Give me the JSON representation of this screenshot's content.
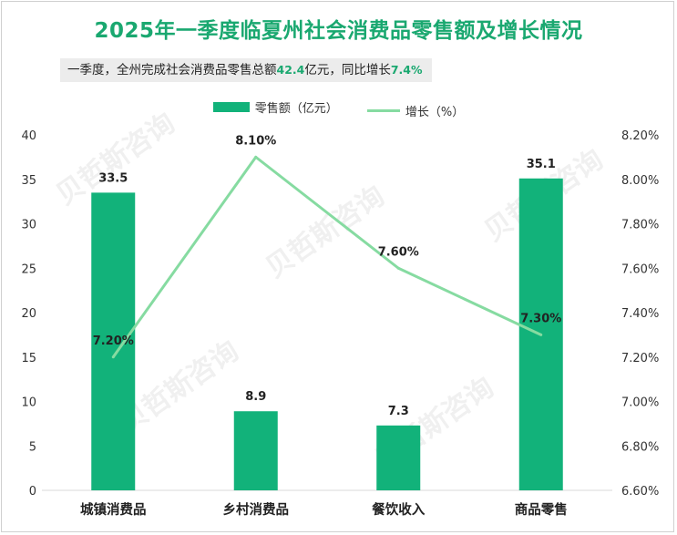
{
  "title": "2025年一季度临夏州社会消费品零售额及增长情况",
  "subtitle": {
    "prefix": "一季度，全州完成社会消费品零售总额",
    "total": "42.4",
    "mid": "亿元，同比增长",
    "growth": "7.4%"
  },
  "watermark": "贝哲斯咨询",
  "chart_data": {
    "type": "bar",
    "categories": [
      "城镇消费品",
      "乡村消费品",
      "餐饮收入",
      "商品零售"
    ],
    "series": [
      {
        "name": "零售额（亿元）",
        "kind": "bar",
        "axis": "left",
        "color": "#12b27a",
        "values": [
          33.5,
          8.9,
          7.3,
          35.1
        ],
        "labels": [
          "33.5",
          "8.9",
          "7.3",
          "35.1"
        ]
      },
      {
        "name": "增长（%）",
        "kind": "line",
        "axis": "right",
        "color": "#86dba1",
        "values": [
          7.2,
          8.1,
          7.6,
          7.3
        ],
        "labels": [
          "7.20%",
          "8.10%",
          "7.60%",
          "7.30%"
        ]
      }
    ],
    "left_axis": {
      "min": 0,
      "max": 40,
      "step": 5,
      "ticks": [
        "0",
        "5",
        "10",
        "15",
        "20",
        "25",
        "30",
        "35",
        "40"
      ]
    },
    "right_axis": {
      "min": 6.6,
      "max": 8.2,
      "step": 0.2,
      "ticks": [
        "6.60%",
        "6.80%",
        "7.00%",
        "7.20%",
        "7.40%",
        "7.60%",
        "7.80%",
        "8.00%",
        "8.20%"
      ]
    },
    "legend_position": "top-center",
    "grid": false
  }
}
